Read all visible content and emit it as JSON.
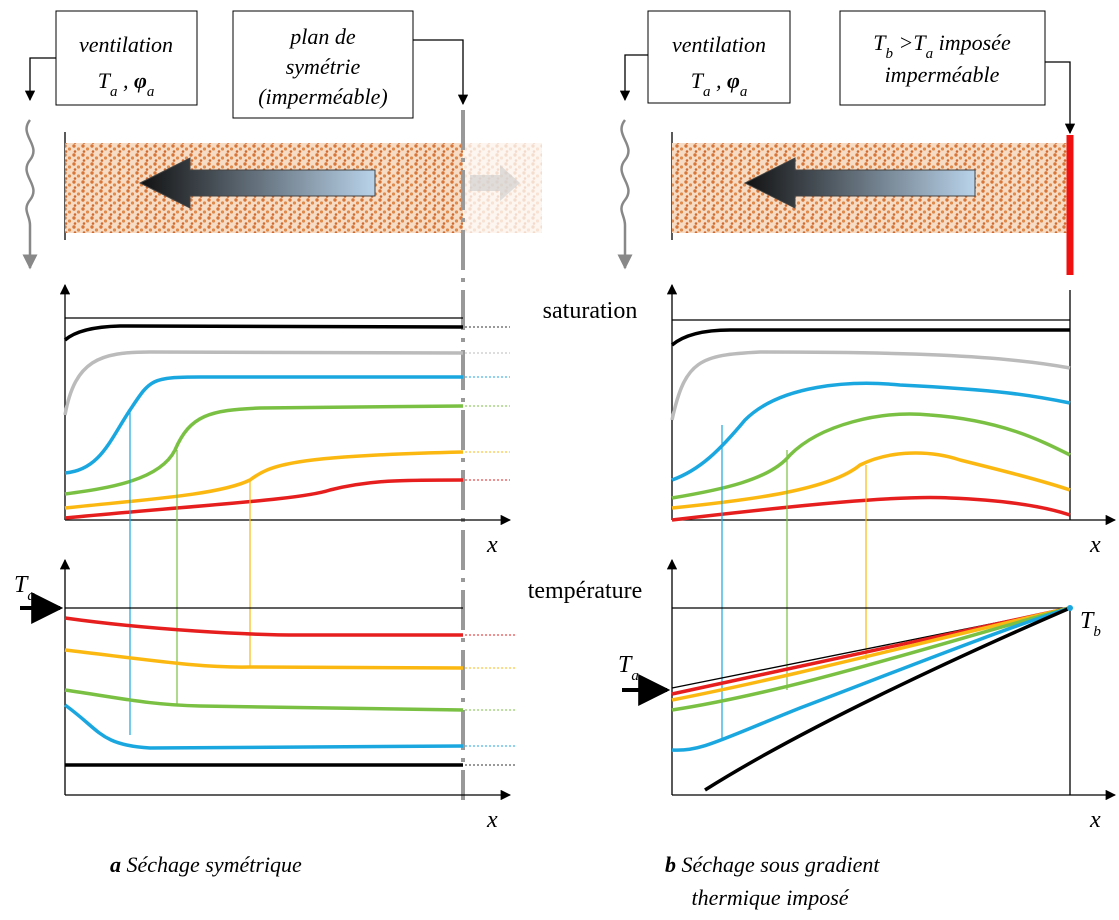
{
  "panels": [
    {
      "ventilation": {
        "label": "ventilation",
        "T": "T",
        "T_sub": "a",
        "separator": " , ",
        "phi": "φ",
        "phi_sub": "a"
      },
      "boundary": {
        "lines": [
          "plan de",
          "symétrie",
          "(imperméable)"
        ]
      },
      "x_axis_top": "x",
      "x_axis_bottom": "x",
      "Ta": {
        "symbol": "T",
        "sub": "a"
      },
      "caption": {
        "letter": "a",
        "lines": [
          "Séchage symétrique"
        ]
      }
    },
    {
      "ventilation": {
        "label": "ventilation",
        "T": "T",
        "T_sub": "a",
        "separator": " , ",
        "phi": "φ",
        "phi_sub": "a"
      },
      "boundary": {
        "line1": {
          "T1": "T",
          "T1_sub": "b",
          "op": " >",
          "T2": "T",
          "T2_sub": "a",
          "rest": " imposée"
        },
        "line2": "imperméable"
      },
      "x_axis_top": "x",
      "x_axis_bottom": "x",
      "Ta": {
        "symbol": "T",
        "sub": "a"
      },
      "Tb": {
        "symbol": "T",
        "sub": "b"
      },
      "caption": {
        "letter": "b",
        "lines": [
          "Séchage sous gradient",
          "thermique imposé"
        ]
      }
    }
  ],
  "saturation_label": "saturation",
  "temperature_label": "température"
}
